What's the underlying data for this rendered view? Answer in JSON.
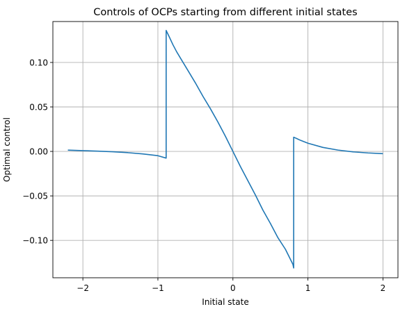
{
  "chart_data": {
    "type": "line",
    "title": "Controls of OCPs starting from different initial states",
    "xlabel": "Initial state",
    "ylabel": "Optimal control",
    "xlim": [
      -2.4,
      2.2
    ],
    "ylim": [
      -0.142,
      0.146
    ],
    "grid": true,
    "x_ticks": [
      -2,
      -1,
      0,
      1,
      2
    ],
    "x_tick_labels": [
      "−2",
      "−1",
      "0",
      "1",
      "2"
    ],
    "y_ticks": [
      -0.1,
      -0.05,
      0.0,
      0.05,
      0.1
    ],
    "y_tick_labels": [
      "−0.10",
      "−0.05",
      "0.00",
      "0.05",
      "0.10"
    ],
    "series": [
      {
        "color": "#1f77b4",
        "x": [
          -2.2,
          -2.0,
          -1.8,
          -1.6,
          -1.4,
          -1.2,
          -1.0,
          -0.89,
          -0.89,
          -0.85,
          -0.8,
          -0.75,
          -0.7,
          -0.6,
          -0.5,
          -0.4,
          -0.3,
          -0.2,
          -0.1,
          0.0,
          0.1,
          0.2,
          0.3,
          0.4,
          0.5,
          0.6,
          0.7,
          0.8,
          0.81,
          0.81,
          0.85,
          0.9,
          1.0,
          1.2,
          1.4,
          1.6,
          1.8,
          2.0
        ],
        "y": [
          0.0015,
          0.0009,
          0.0003,
          -0.0004,
          -0.0014,
          -0.0028,
          -0.0048,
          -0.0075,
          0.136,
          0.129,
          0.12,
          0.112,
          0.105,
          0.091,
          0.077,
          0.062,
          0.048,
          0.033,
          0.017,
          0.0,
          -0.017,
          -0.033,
          -0.049,
          -0.066,
          -0.081,
          -0.097,
          -0.11,
          -0.127,
          -0.131,
          0.016,
          0.0145,
          0.0125,
          0.0092,
          0.0045,
          0.0015,
          -0.0005,
          -0.0017,
          -0.0025
        ]
      }
    ]
  }
}
